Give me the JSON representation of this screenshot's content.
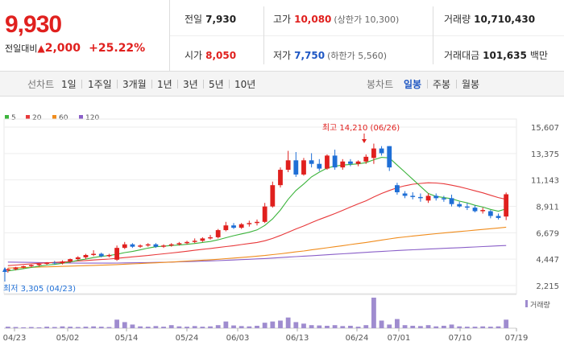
{
  "header": {
    "price": "9,930",
    "change_label": "전일대비",
    "change_arrow": "▲",
    "change_amount": "2,000",
    "change_pct": "+25.22%"
  },
  "quote": {
    "prev_label": "전일",
    "prev_value": "7,930",
    "high_label": "고가",
    "high_value": "10,080",
    "high_sub": "(상한가 10,300)",
    "volume_label": "거래량",
    "volume_value": "10,710,430",
    "open_label": "시가",
    "open_value": "8,050",
    "low_label": "저가",
    "low_value": "7,750",
    "low_sub": "(하한가 5,560)",
    "amount_label": "거래대금",
    "amount_value": "101,635",
    "amount_unit": "백만"
  },
  "toolbar": {
    "line_label": "선차트",
    "line_periods": [
      "1일",
      "1주일",
      "3개월",
      "1년",
      "3년",
      "5년",
      "10년"
    ],
    "candle_label": "봉차트",
    "candle_periods": [
      "일봉",
      "주봉",
      "월봉"
    ],
    "active_candle": "일봉"
  },
  "colors": {
    "up": "#e0201e",
    "down": "#1f6fd6",
    "ma5": "#3cb43c",
    "ma20": "#e8383a",
    "ma60": "#f08c1c",
    "ma120": "#8a5fc8",
    "volume": "#9f8ccf"
  },
  "chart_data": {
    "type": "candlestick",
    "legend": [
      {
        "name": "5",
        "color": "#3cb43c"
      },
      {
        "name": "20",
        "color": "#e8383a"
      },
      {
        "name": "60",
        "color": "#f08c1c"
      },
      {
        "name": "120",
        "color": "#8a5fc8"
      }
    ],
    "y_ticks": [
      "15,607",
      "13,375",
      "11,143",
      "8,911",
      "6,679",
      "4,447",
      "2,215"
    ],
    "ylim": [
      2215,
      15607
    ],
    "x_ticks": [
      "04/23",
      "05/02",
      "05/14",
      "05/24",
      "06/03",
      "06/13",
      "06/24",
      "07/01",
      "07/10",
      "07/19"
    ],
    "high_label": "최고 14,210 (06/26)",
    "low_label": "최저 3,305 (04/23)",
    "volume_label": "거래량",
    "candles": [
      {
        "o": 3500,
        "h": 3700,
        "l": 3305,
        "c": 3600
      },
      {
        "o": 3600,
        "h": 3800,
        "l": 3500,
        "c": 3750
      },
      {
        "o": 3750,
        "h": 3900,
        "l": 3650,
        "c": 3850
      },
      {
        "o": 3850,
        "h": 4000,
        "l": 3750,
        "c": 3950
      },
      {
        "o": 3950,
        "h": 4100,
        "l": 3850,
        "c": 4050
      },
      {
        "o": 4050,
        "h": 4200,
        "l": 3950,
        "c": 4150
      },
      {
        "o": 4150,
        "h": 4300,
        "l": 4000,
        "c": 4100
      },
      {
        "o": 4100,
        "h": 4350,
        "l": 4000,
        "c": 4250
      },
      {
        "o": 4250,
        "h": 4500,
        "l": 4150,
        "c": 4450
      },
      {
        "o": 4450,
        "h": 4700,
        "l": 4350,
        "c": 4600
      },
      {
        "o": 4600,
        "h": 4900,
        "l": 4450,
        "c": 4800
      },
      {
        "o": 4800,
        "h": 5200,
        "l": 4700,
        "c": 4900
      },
      {
        "o": 4900,
        "h": 5000,
        "l": 4600,
        "c": 4700
      },
      {
        "o": 4700,
        "h": 4900,
        "l": 4600,
        "c": 4800
      },
      {
        "o": 4400,
        "h": 5600,
        "l": 4300,
        "c": 5400
      },
      {
        "o": 5400,
        "h": 5900,
        "l": 5300,
        "c": 5700
      },
      {
        "o": 5700,
        "h": 5800,
        "l": 5400,
        "c": 5500
      },
      {
        "o": 5500,
        "h": 5700,
        "l": 5400,
        "c": 5600
      },
      {
        "o": 5600,
        "h": 5800,
        "l": 5500,
        "c": 5700
      },
      {
        "o": 5700,
        "h": 5800,
        "l": 5400,
        "c": 5500
      },
      {
        "o": 5500,
        "h": 5700,
        "l": 5400,
        "c": 5600
      },
      {
        "o": 5600,
        "h": 5800,
        "l": 5500,
        "c": 5700
      },
      {
        "o": 5700,
        "h": 5900,
        "l": 5600,
        "c": 5800
      },
      {
        "o": 5800,
        "h": 6000,
        "l": 5700,
        "c": 5900
      },
      {
        "o": 5900,
        "h": 6200,
        "l": 5800,
        "c": 6000
      },
      {
        "o": 6000,
        "h": 6300,
        "l": 5900,
        "c": 6200
      },
      {
        "o": 6200,
        "h": 6500,
        "l": 6100,
        "c": 6300
      },
      {
        "o": 6300,
        "h": 7000,
        "l": 6200,
        "c": 6900
      },
      {
        "o": 6900,
        "h": 7600,
        "l": 6800,
        "c": 7300
      },
      {
        "o": 7300,
        "h": 7500,
        "l": 7000,
        "c": 7100
      },
      {
        "o": 7100,
        "h": 7500,
        "l": 7000,
        "c": 7400
      },
      {
        "o": 7400,
        "h": 7700,
        "l": 7200,
        "c": 7500
      },
      {
        "o": 7500,
        "h": 7800,
        "l": 7300,
        "c": 7600
      },
      {
        "o": 7600,
        "h": 9200,
        "l": 7500,
        "c": 8900
      },
      {
        "o": 8900,
        "h": 11000,
        "l": 8800,
        "c": 10700
      },
      {
        "o": 10700,
        "h": 12200,
        "l": 10500,
        "c": 12000
      },
      {
        "o": 12000,
        "h": 13600,
        "l": 11800,
        "c": 12800
      },
      {
        "o": 12800,
        "h": 13500,
        "l": 11400,
        "c": 11600
      },
      {
        "o": 11600,
        "h": 13000,
        "l": 11500,
        "c": 12800
      },
      {
        "o": 12800,
        "h": 13400,
        "l": 12200,
        "c": 12500
      },
      {
        "o": 12500,
        "h": 12900,
        "l": 11900,
        "c": 12100
      },
      {
        "o": 12100,
        "h": 13300,
        "l": 12000,
        "c": 13200
      },
      {
        "o": 13200,
        "h": 13700,
        "l": 12000,
        "c": 12200
      },
      {
        "o": 12200,
        "h": 12900,
        "l": 12000,
        "c": 12700
      },
      {
        "o": 12700,
        "h": 12900,
        "l": 12300,
        "c": 12500
      },
      {
        "o": 12500,
        "h": 12800,
        "l": 12300,
        "c": 12700
      },
      {
        "o": 12700,
        "h": 13300,
        "l": 12500,
        "c": 13100
      },
      {
        "o": 13000,
        "h": 14210,
        "l": 12500,
        "c": 13800
      },
      {
        "o": 13800,
        "h": 14000,
        "l": 13200,
        "c": 13400
      },
      {
        "o": 14000,
        "h": 14000,
        "l": 11900,
        "c": 12200
      },
      {
        "o": 10700,
        "h": 10900,
        "l": 9900,
        "c": 10100
      },
      {
        "o": 10000,
        "h": 10200,
        "l": 9600,
        "c": 9800
      },
      {
        "o": 9800,
        "h": 10100,
        "l": 9500,
        "c": 9700
      },
      {
        "o": 9700,
        "h": 10000,
        "l": 9300,
        "c": 9600
      },
      {
        "o": 9400,
        "h": 10000,
        "l": 9200,
        "c": 9800
      },
      {
        "o": 9800,
        "h": 10000,
        "l": 9400,
        "c": 9600
      },
      {
        "o": 9600,
        "h": 9800,
        "l": 9300,
        "c": 9500
      },
      {
        "o": 9600,
        "h": 9900,
        "l": 8900,
        "c": 9100
      },
      {
        "o": 9100,
        "h": 9300,
        "l": 8800,
        "c": 8900
      },
      {
        "o": 8900,
        "h": 9200,
        "l": 8600,
        "c": 8800
      },
      {
        "o": 8800,
        "h": 9000,
        "l": 8400,
        "c": 8500
      },
      {
        "o": 8500,
        "h": 8800,
        "l": 8300,
        "c": 8600
      },
      {
        "o": 8500,
        "h": 8600,
        "l": 7900,
        "c": 8100
      },
      {
        "o": 8100,
        "h": 8300,
        "l": 7800,
        "c": 7930
      },
      {
        "o": 8050,
        "h": 10080,
        "l": 7750,
        "c": 9930
      }
    ],
    "ma5": [
      3450,
      3550,
      3650,
      3750,
      3850,
      3950,
      4000,
      4100,
      4200,
      4350,
      4450,
      4580,
      4680,
      4750,
      4860,
      5000,
      5100,
      5230,
      5380,
      5500,
      5540,
      5600,
      5640,
      5700,
      5770,
      5860,
      5940,
      6080,
      6260,
      6430,
      6580,
      6720,
      6920,
      7300,
      7850,
      8600,
      9500,
      10250,
      10800,
      11400,
      11800,
      12150,
      12300,
      12400,
      12450,
      12500,
      12600,
      12850,
      13050,
      13000,
      12400,
      11800,
      11200,
      10600,
      10000,
      9750,
      9650,
      9550,
      9350,
      9200,
      9000,
      8850,
      8650,
      8500,
      8700
    ],
    "ma20": [
      3900,
      3950,
      4000,
      4050,
      4100,
      4130,
      4170,
      4210,
      4250,
      4290,
      4330,
      4380,
      4420,
      4460,
      4520,
      4580,
      4640,
      4700,
      4760,
      4830,
      4900,
      4970,
      5040,
      5120,
      5200,
      5280,
      5350,
      5430,
      5510,
      5590,
      5680,
      5770,
      5860,
      6000,
      6200,
      6450,
      6720,
      7000,
      7250,
      7530,
      7800,
      8050,
      8300,
      8570,
      8850,
      9120,
      9380,
      9700,
      10000,
      10250,
      10480,
      10650,
      10780,
      10850,
      10900,
      10880,
      10820,
      10700,
      10560,
      10400,
      10220,
      10050,
      9850,
      9650,
      9500
    ],
    "ma60": [
      3700,
      3720,
      3740,
      3760,
      3780,
      3800,
      3820,
      3840,
      3860,
      3880,
      3900,
      3920,
      3940,
      3960,
      3990,
      4020,
      4050,
      4080,
      4110,
      4140,
      4170,
      4200,
      4240,
      4280,
      4320,
      4360,
      4400,
      4440,
      4490,
      4540,
      4590,
      4640,
      4700,
      4760,
      4830,
      4900,
      4980,
      5060,
      5140,
      5230,
      5320,
      5410,
      5500,
      5590,
      5680,
      5770,
      5860,
      5960,
      6060,
      6160,
      6250,
      6330,
      6400,
      6470,
      6540,
      6600,
      6660,
      6720,
      6780,
      6840,
      6900,
      6960,
      7020,
      7080,
      7150
    ],
    "ma120": [
      4200,
      4190,
      4180,
      4170,
      4160,
      4150,
      4140,
      4130,
      4120,
      4110,
      4110,
      4110,
      4110,
      4110,
      4120,
      4130,
      4140,
      4150,
      4160,
      4170,
      4180,
      4200,
      4220,
      4240,
      4260,
      4280,
      4300,
      4320,
      4350,
      4380,
      4410,
      4440,
      4470,
      4500,
      4540,
      4580,
      4620,
      4660,
      4700,
      4740,
      4780,
      4820,
      4860,
      4900,
      4940,
      4980,
      5020,
      5060,
      5100,
      5140,
      5180,
      5210,
      5240,
      5270,
      5300,
      5330,
      5360,
      5390,
      5420,
      5450,
      5480,
      5510,
      5540,
      5570,
      5600
    ],
    "volume": [
      0.05,
      0.04,
      0.03,
      0.04,
      0.03,
      0.05,
      0.04,
      0.06,
      0.05,
      0.04,
      0.05,
      0.06,
      0.05,
      0.04,
      0.28,
      0.2,
      0.12,
      0.06,
      0.05,
      0.07,
      0.05,
      0.1,
      0.06,
      0.05,
      0.07,
      0.05,
      0.06,
      0.1,
      0.22,
      0.09,
      0.07,
      0.06,
      0.08,
      0.18,
      0.22,
      0.25,
      0.35,
      0.2,
      0.15,
      0.1,
      0.09,
      0.08,
      0.1,
      0.07,
      0.08,
      0.05,
      0.1,
      1.0,
      0.25,
      0.12,
      0.3,
      0.1,
      0.08,
      0.07,
      0.1,
      0.06,
      0.08,
      0.12,
      0.06,
      0.05,
      0.05,
      0.06,
      0.05,
      0.06,
      0.28
    ]
  }
}
